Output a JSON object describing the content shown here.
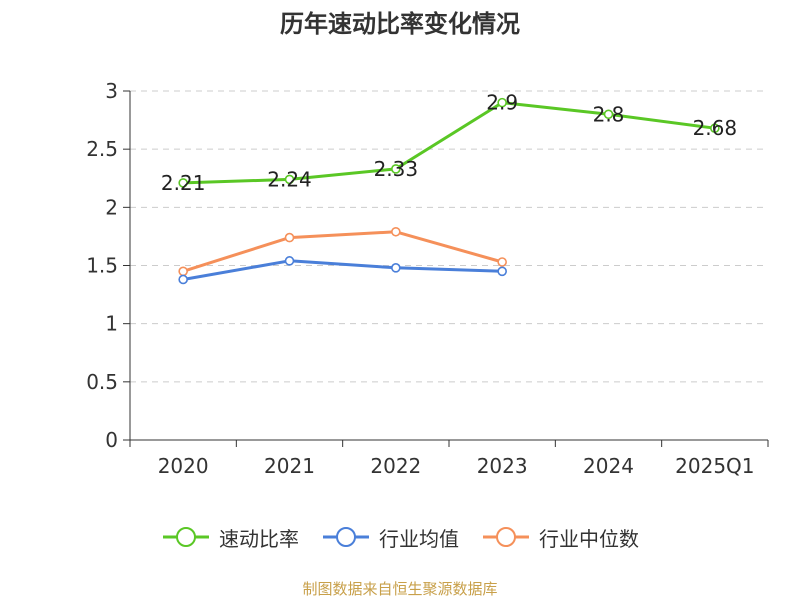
{
  "title": "历年速动比率变化情况",
  "source": "制图数据来自恒生聚源数据库",
  "chart_data": {
    "type": "line",
    "title": "历年速动比率变化情况",
    "categories": [
      "2020",
      "2021",
      "2022",
      "2023",
      "2024",
      "2025Q1"
    ],
    "ylim": [
      0,
      3
    ],
    "yticks": [
      "0",
      "0.5",
      "1",
      "1.5",
      "2",
      "2.5",
      "3"
    ],
    "grid": true,
    "legend_position": "bottom",
    "series": [
      {
        "name": "速动比率",
        "color": "#5ac725",
        "values": [
          2.21,
          2.24,
          2.33,
          2.9,
          2.8,
          2.68
        ],
        "labels": [
          "2.21",
          "2.24",
          "2.33",
          "2.9",
          "2.8",
          "2.68"
        ],
        "show_labels": true
      },
      {
        "name": "行业均值",
        "color": "#4a7fd9",
        "values": [
          1.38,
          1.54,
          1.48,
          1.45,
          null,
          null
        ],
        "show_labels": false
      },
      {
        "name": "行业中位数",
        "color": "#f5905a",
        "values": [
          1.45,
          1.74,
          1.79,
          1.53,
          null,
          null
        ],
        "show_labels": false
      }
    ]
  }
}
